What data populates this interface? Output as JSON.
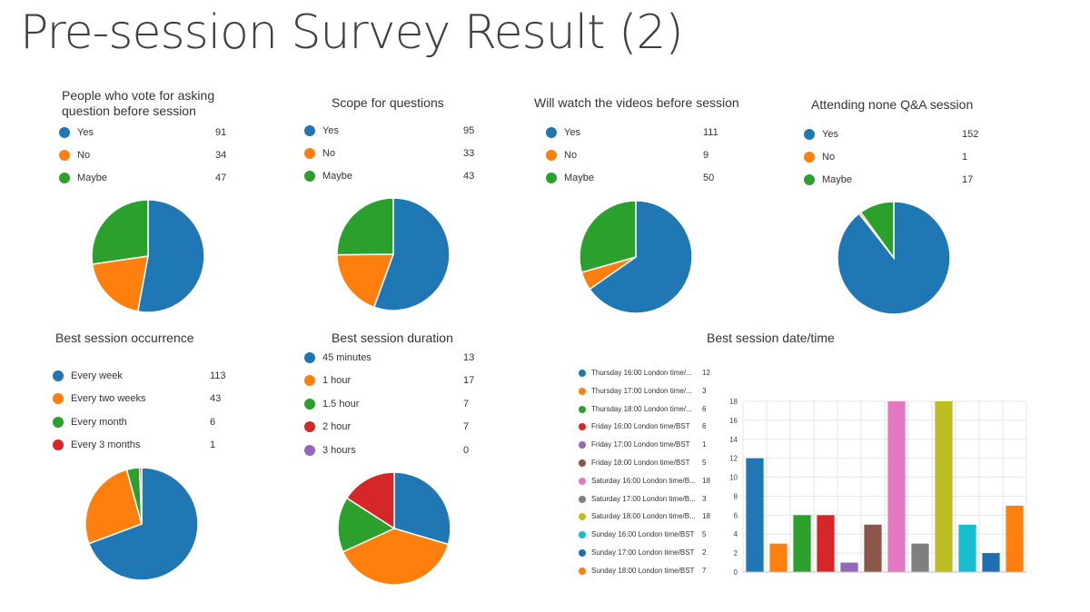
{
  "page": {
    "title": "Pre-session Survey Result  (2)"
  },
  "chart_data": [
    {
      "type": "pie",
      "title": "People who vote for asking question before session",
      "title_lines": [
        "People who vote for asking",
        "question before session"
      ],
      "categories": [
        "Yes",
        "No",
        "Maybe"
      ],
      "values": [
        91,
        34,
        47
      ],
      "colors": [
        "#1f77b4",
        "#ff7f0e",
        "#2ca02c"
      ],
      "legend": "top"
    },
    {
      "type": "pie",
      "title": "Scope for questions",
      "categories": [
        "Yes",
        "No",
        "Maybe"
      ],
      "values": [
        95,
        33,
        43
      ],
      "colors": [
        "#1f77b4",
        "#ff7f0e",
        "#2ca02c"
      ],
      "legend": "top"
    },
    {
      "type": "pie",
      "title": "Will watch the videos before session",
      "categories": [
        "Yes",
        "No",
        "Maybe"
      ],
      "values": [
        111,
        9,
        50
      ],
      "colors": [
        "#1f77b4",
        "#ff7f0e",
        "#2ca02c"
      ],
      "legend": "top"
    },
    {
      "type": "pie",
      "title": "Attending none Q&A session",
      "categories": [
        "Yes",
        "No",
        "Maybe"
      ],
      "values": [
        152,
        1,
        17
      ],
      "colors": [
        "#1f77b4",
        "#ff7f0e",
        "#2ca02c"
      ],
      "legend": "top"
    },
    {
      "type": "pie",
      "title": "Best session occurrence",
      "categories": [
        "Every week",
        "Every two weeks",
        "Every month",
        "Every 3 months"
      ],
      "values": [
        113,
        43,
        6,
        1
      ],
      "colors": [
        "#1f77b4",
        "#ff7f0e",
        "#2ca02c",
        "#d62728"
      ],
      "legend": "top"
    },
    {
      "type": "pie",
      "title": "Best session duration",
      "categories": [
        "45 minutes",
        "1 hour",
        "1.5 hour",
        "2 hour",
        "3 hours"
      ],
      "values": [
        13,
        17,
        7,
        7,
        0
      ],
      "colors": [
        "#1f77b4",
        "#ff7f0e",
        "#2ca02c",
        "#d62728",
        "#9467bd"
      ],
      "legend": "top"
    },
    {
      "type": "bar",
      "title": "Best session date/time",
      "categories": [
        "Thursday 16:00 London time/...",
        "Thursday 17:00 London time/...",
        "Thursday 18:00 London time/...",
        "Friday 16:00 London time/BST",
        "Friday 17:00 London time/BST",
        "Friday 18:00 London time/BST",
        "Saturday 16:00 London time/B...",
        "Saturday 17:00 London time/B...",
        "Saturday 18:00 London time/B...",
        "Sunday 16:00 London time/BST",
        "Sunday 17:00 London time/BST",
        "Sunday 18:00 London time/BST"
      ],
      "values": [
        12,
        3,
        6,
        6,
        1,
        5,
        18,
        3,
        18,
        5,
        2,
        7
      ],
      "colors": [
        "#1f77b4",
        "#ff7f0e",
        "#2ca02c",
        "#d62728",
        "#9467bd",
        "#8c564b",
        "#e377c2",
        "#7f7f7f",
        "#bcbd22",
        "#17becf",
        "#1f6fb4",
        "#ff7f0e"
      ],
      "ylim": [
        0,
        18
      ],
      "yticks": [
        "0",
        "2",
        "4",
        "6",
        "8",
        "10",
        "12",
        "14",
        "16",
        "18"
      ],
      "grid": true,
      "legend": "left"
    }
  ]
}
